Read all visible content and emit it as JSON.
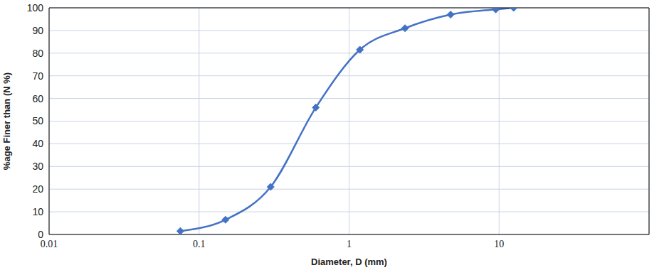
{
  "chart_data": {
    "type": "line",
    "x_label": "Diameter, D (mm)",
    "y_label": "%age Finer than (N %)",
    "x": [
      0.075,
      0.15,
      0.3,
      0.6,
      1.18,
      2.36,
      4.75,
      9.5,
      12.5
    ],
    "values": [
      1.5,
      6.5,
      21,
      56,
      81.5,
      91,
      97,
      99.3,
      100
    ],
    "color": "#4472c4",
    "marker": "diamond",
    "line_style": "solid",
    "log": "x",
    "xlim": [
      0.01,
      100
    ],
    "xticks": [
      0.01,
      0.1,
      1,
      10
    ],
    "ylim": [
      0,
      100
    ],
    "yticks": [
      0,
      10,
      20,
      30,
      40,
      50,
      60,
      70,
      80,
      90,
      100
    ],
    "grid": true
  }
}
